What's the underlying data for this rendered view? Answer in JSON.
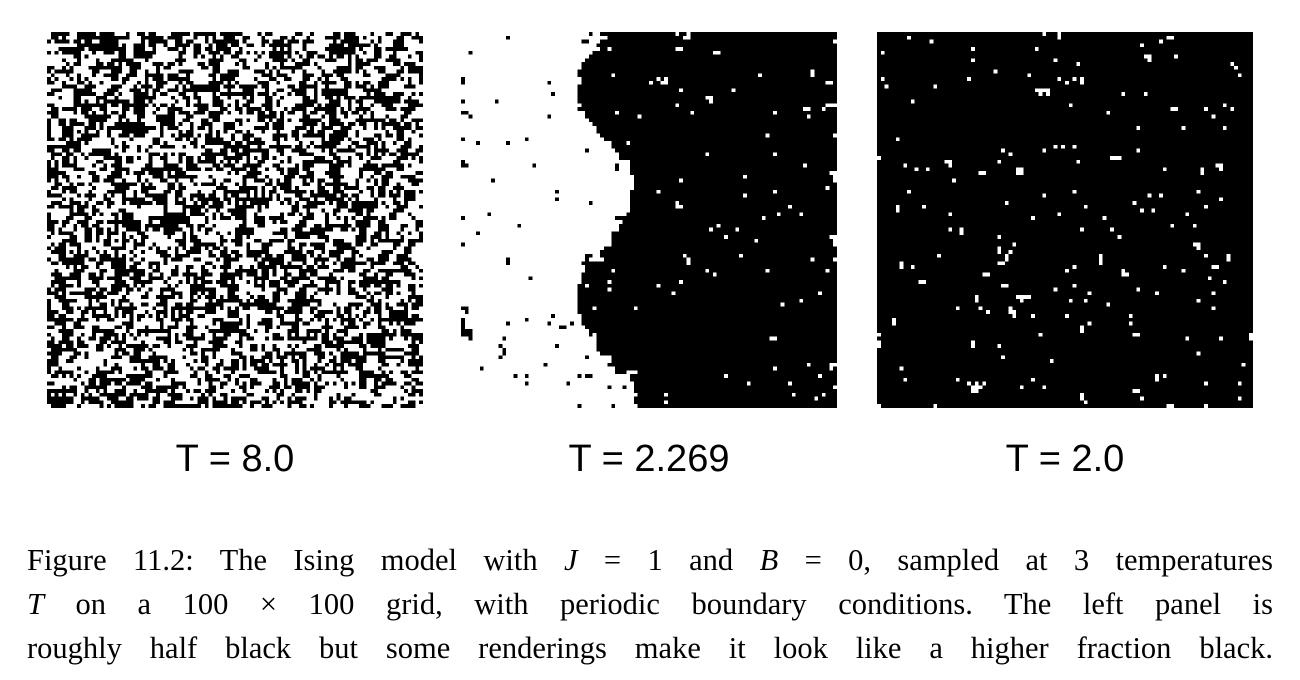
{
  "figure": {
    "panels": [
      {
        "label": "T = 8.0",
        "temperature": 8.0,
        "grid_size": 100,
        "black_fraction": 0.5
      },
      {
        "label": "T = 2.269",
        "temperature": 2.269,
        "grid_size": 100
      },
      {
        "label": "T = 2.0",
        "temperature": 2.0,
        "grid_size": 100
      }
    ],
    "caption": {
      "lines": [
        [
          {
            "t": "Figure 11.2: The Ising model with "
          },
          {
            "t": "J",
            "i": true
          },
          {
            "t": " = 1 and "
          },
          {
            "t": "B",
            "i": true
          },
          {
            "t": " = 0, sampled at 3 temperatures"
          }
        ],
        [
          {
            "t": "T",
            "i": true
          },
          {
            "t": " on a 100 × 100 grid, with periodic boundary conditions.  The left panel is"
          }
        ],
        [
          {
            "t": "roughly half black but some renderings make it look like a higher fraction black."
          }
        ]
      ]
    }
  },
  "colors": {
    "spin_up": "#000000",
    "spin_down": "#ffffff"
  }
}
